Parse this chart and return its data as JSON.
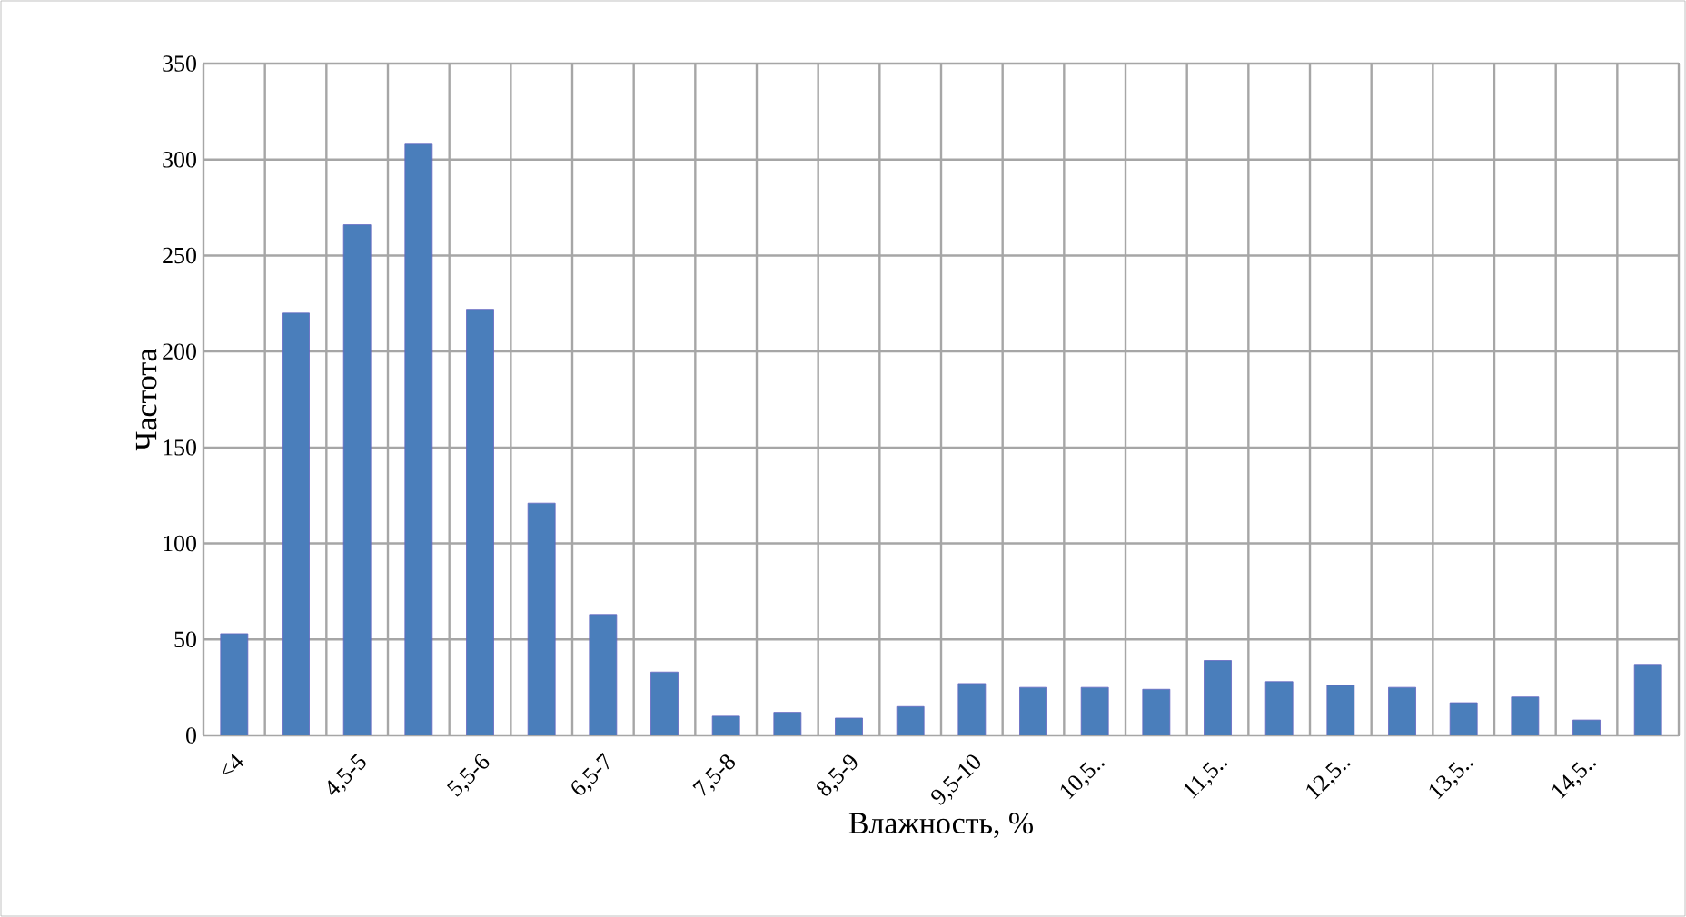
{
  "chart_data": {
    "type": "bar",
    "xlabel": "Влажность, %",
    "ylabel": "Частота",
    "categories": [
      "<4",
      null,
      "4,5-5",
      null,
      "5,5-6",
      null,
      "6,5-7",
      null,
      "7,5-8",
      null,
      "8,5-9",
      null,
      "9,5-10",
      null,
      "10,5..",
      null,
      "11,5..",
      null,
      "12,5..",
      null,
      "13,5..",
      null,
      "14,5..",
      null
    ],
    "values": [
      53,
      220,
      266,
      308,
      222,
      121,
      63,
      33,
      10,
      12,
      9,
      15,
      27,
      25,
      25,
      24,
      39,
      28,
      26,
      25,
      17,
      20,
      8,
      37
    ],
    "color": "#4a7ebb",
    "ylim": [
      0,
      350
    ],
    "yticks": [
      0,
      50,
      100,
      150,
      200,
      250,
      300,
      350
    ],
    "grid": true
  }
}
